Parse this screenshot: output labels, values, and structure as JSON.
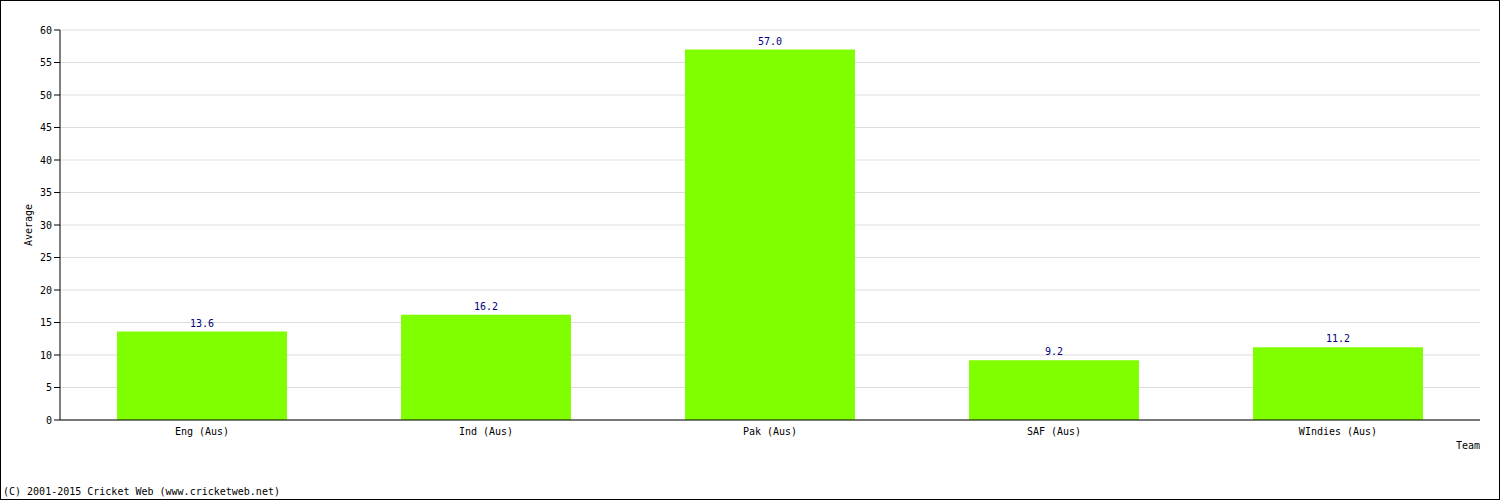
{
  "chart_data": {
    "type": "bar",
    "categories": [
      "Eng (Aus)",
      "Ind (Aus)",
      "Pak (Aus)",
      "SAF (Aus)",
      "WIndies (Aus)"
    ],
    "values": [
      13.6,
      16.2,
      57.0,
      9.2,
      11.2
    ],
    "value_labels": [
      "13.6",
      "16.2",
      "57.0",
      "9.2",
      "11.2"
    ],
    "data_labels": true,
    "color": "#7fff00",
    "ylim": [
      0,
      60
    ],
    "yticks": [
      0,
      5,
      10,
      15,
      20,
      25,
      30,
      35,
      40,
      45,
      50,
      55,
      60
    ],
    "grid": true,
    "xlabel": "Team",
    "ylabel": "Average",
    "source": "(C) 2001-2015 Cricket Web (www.cricketweb.net)"
  }
}
